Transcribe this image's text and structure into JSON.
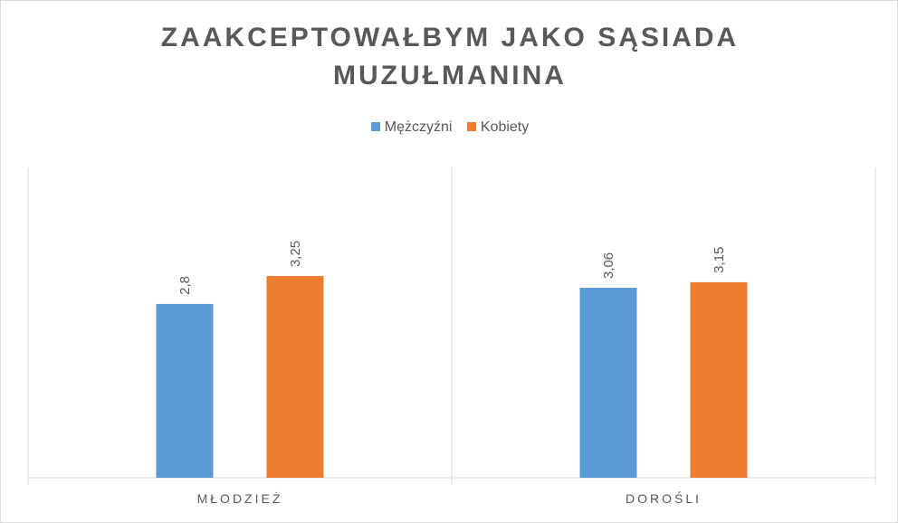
{
  "chart_data": {
    "type": "bar",
    "title_lines": [
      "ZAAKCEPTOWAŁBYM JAKO SĄSIADA",
      "MUZUŁMANINA"
    ],
    "categories": [
      "MŁODZIEŻ",
      "DOROŚLI"
    ],
    "series": [
      {
        "name": "Mężczyźni",
        "color": "#5b9bd5",
        "values": [
          2.8,
          3.06
        ],
        "labels": [
          "2,8",
          "3,06"
        ]
      },
      {
        "name": "Kobiety",
        "color": "#ed7d31",
        "values": [
          3.25,
          3.15
        ],
        "labels": [
          "3,25",
          "3,15"
        ]
      }
    ],
    "ylim": [
      0,
      5
    ],
    "grid": false,
    "legend_position": "top",
    "category_separators": true
  }
}
